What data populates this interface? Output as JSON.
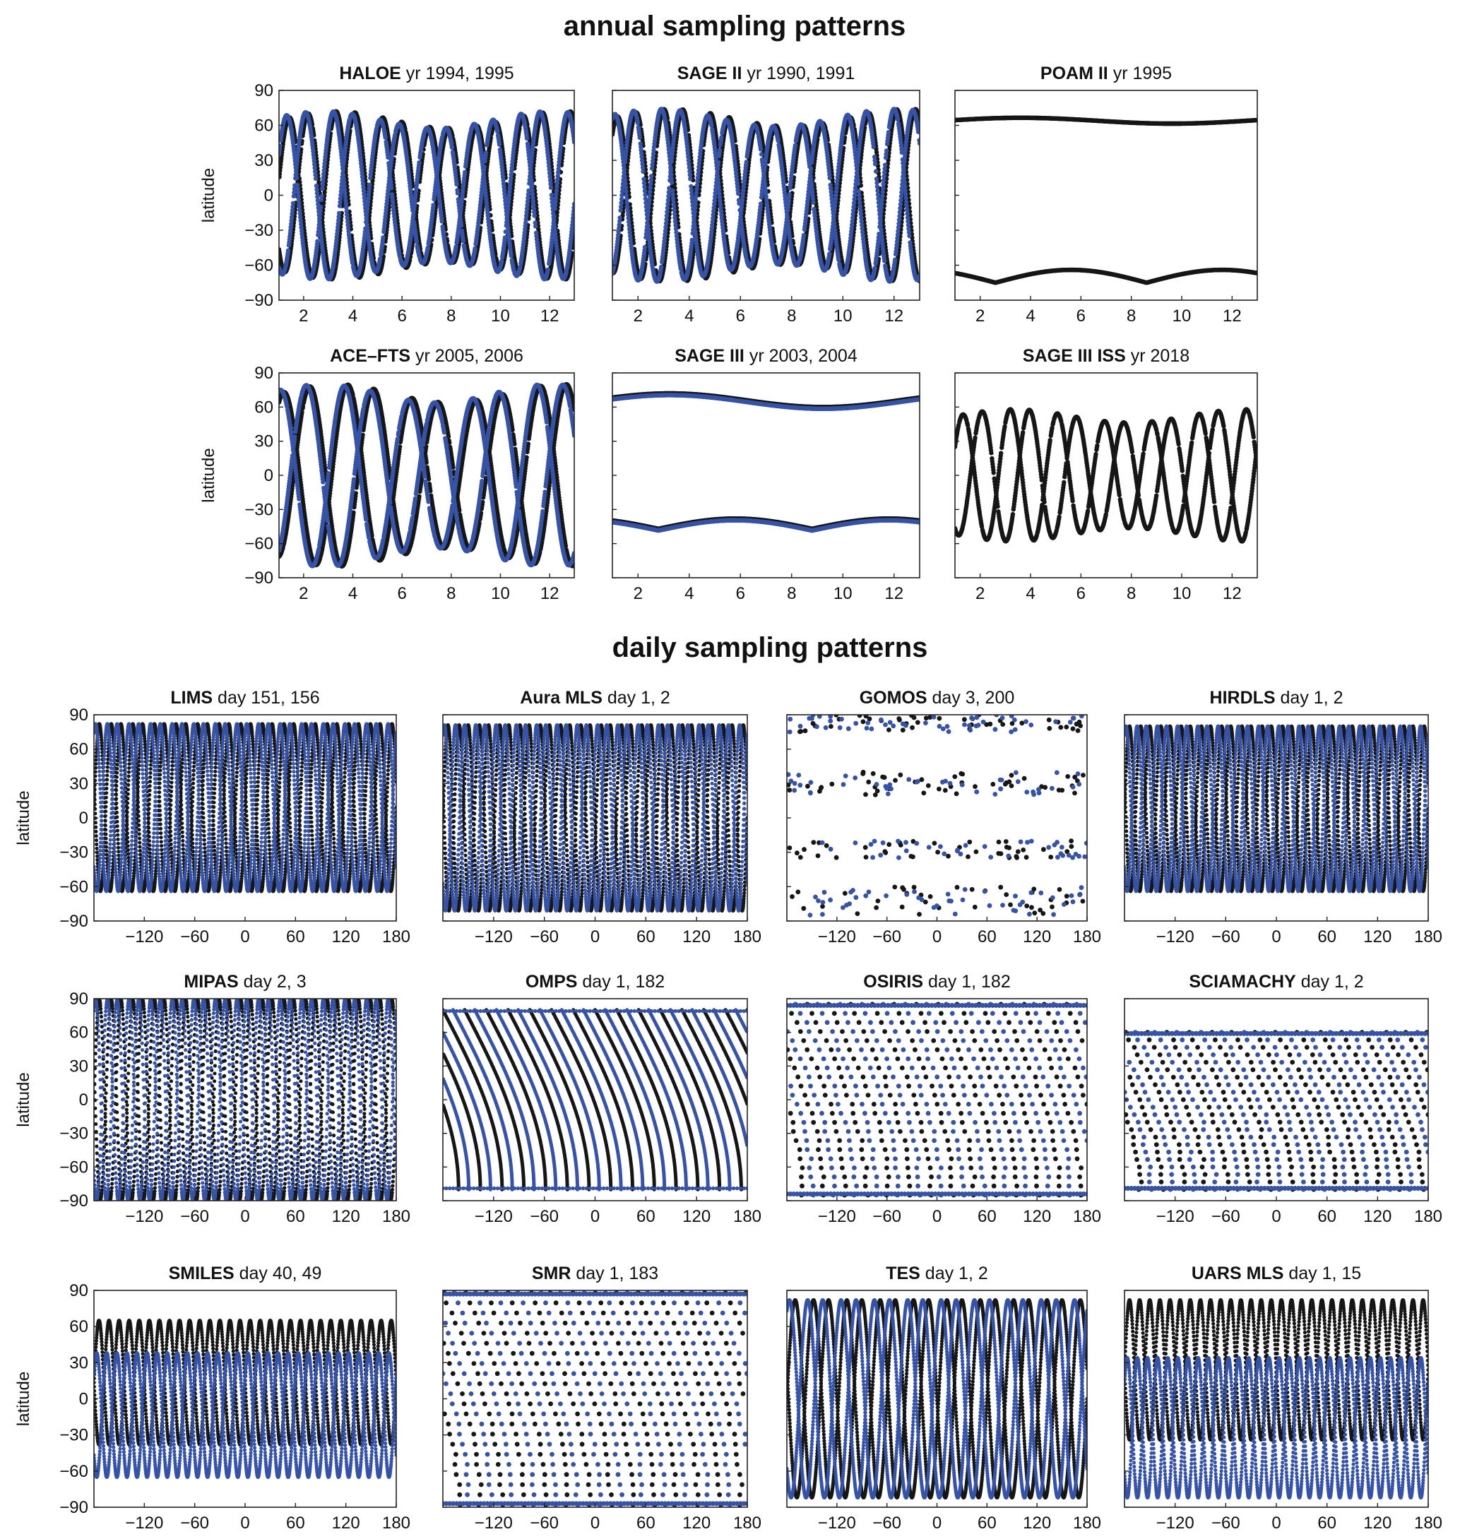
{
  "page": {
    "annual_title": "annual sampling patterns",
    "daily_title": "daily sampling patterns"
  },
  "colors": {
    "series_a": "#161616",
    "series_b": "#3653a6"
  },
  "chart_data": [
    {
      "id": "haloe",
      "group": "annual",
      "type": "scatter",
      "instrument": "HALOE",
      "rest": " yr 1994, 1995",
      "pattern": "occ",
      "params": {
        "amp": 72,
        "cycles": 6.3,
        "ph": 0.2
      },
      "xlim": [
        1,
        13
      ],
      "ylim": [
        -90,
        90
      ],
      "xticks": [
        2,
        4,
        6,
        8,
        10,
        12
      ],
      "yticks": [
        90,
        60,
        30,
        0,
        -30,
        -60,
        -90
      ],
      "ylabel": "latitude",
      "series": [
        {
          "name": "1994"
        },
        {
          "name": "1995"
        }
      ]
    },
    {
      "id": "sage2",
      "group": "annual",
      "type": "scatter",
      "instrument": "SAGE II",
      "rest": " yr 1990, 1991",
      "pattern": "occ",
      "params": {
        "amp": 74,
        "cycles": 6.6,
        "ph": 0.9
      },
      "xlim": [
        1,
        13
      ],
      "ylim": [
        -90,
        90
      ],
      "xticks": [
        2,
        4,
        6,
        8,
        10,
        12
      ],
      "yticks": [
        90,
        60,
        30,
        0,
        -30,
        -60,
        -90
      ],
      "ylabel": "",
      "series": [
        {
          "name": "1990"
        },
        {
          "name": "1991"
        }
      ]
    },
    {
      "id": "poam2",
      "group": "annual",
      "type": "scatter",
      "instrument": "POAM II",
      "rest": " yr 1995",
      "pattern": "polar",
      "params": {
        "n": [
          64,
          5,
          0.2
        ],
        "s": [
          -75,
          11,
          2.3
        ]
      },
      "xlim": [
        1,
        13
      ],
      "ylim": [
        -90,
        90
      ],
      "xticks": [
        2,
        4,
        6,
        8,
        10,
        12
      ],
      "yticks": [
        90,
        60,
        30,
        0,
        -30,
        -60,
        -90
      ],
      "ylabel": "",
      "series": [
        {
          "name": "1995"
        }
      ]
    },
    {
      "id": "acefts",
      "group": "annual",
      "type": "scatter",
      "instrument": "ACE–FTS",
      "rest": " yr 2005, 2006",
      "pattern": "occ",
      "params": {
        "amp": 80,
        "cycles": 4.6,
        "ph": 1.1
      },
      "xlim": [
        1,
        13
      ],
      "ylim": [
        -90,
        90
      ],
      "xticks": [
        2,
        4,
        6,
        8,
        10,
        12
      ],
      "yticks": [
        90,
        60,
        30,
        0,
        -30,
        -60,
        -90
      ],
      "ylabel": "latitude",
      "series": [
        {
          "name": "2005"
        },
        {
          "name": "2006"
        }
      ]
    },
    {
      "id": "sage3",
      "group": "annual",
      "type": "scatter",
      "instrument": "SAGE III",
      "rest": " yr 2003, 2004",
      "pattern": "polar",
      "params": {
        "n": [
          66,
          12,
          0.4
        ],
        "s": [
          -47,
          9,
          2.2
        ]
      },
      "xlim": [
        1,
        13
      ],
      "ylim": [
        -90,
        90
      ],
      "xticks": [
        2,
        4,
        6,
        8,
        10,
        12
      ],
      "yticks": [
        90,
        60,
        30,
        0,
        -30,
        -60,
        -90
      ],
      "ylabel": "",
      "series": [
        {
          "name": "2003"
        },
        {
          "name": "2004"
        }
      ]
    },
    {
      "id": "sage3iss",
      "group": "annual",
      "type": "scatter",
      "instrument": "SAGE III ISS",
      "rest": " yr 2018",
      "pattern": "occ",
      "params": {
        "amp": 58,
        "cycles": 6.4,
        "ph": 0.5
      },
      "xlim": [
        1,
        13
      ],
      "ylim": [
        -90,
        90
      ],
      "xticks": [
        2,
        4,
        6,
        8,
        10,
        12
      ],
      "yticks": [
        90,
        60,
        30,
        0,
        -30,
        -60,
        -90
      ],
      "ylabel": "",
      "series": [
        {
          "name": "2018"
        }
      ]
    },
    {
      "id": "lims",
      "group": "daily",
      "type": "scatter",
      "instrument": "LIMS",
      "rest": " day 151, 156",
      "pattern": "orbit",
      "params": {
        "top": 82,
        "bot": -64,
        "orbits": 14,
        "style": "line"
      },
      "xlim": [
        -180,
        180
      ],
      "ylim": [
        -90,
        90
      ],
      "xticks": [
        -120,
        -60,
        0,
        60,
        120,
        180
      ],
      "yticks": [
        90,
        60,
        30,
        0,
        -30,
        -60,
        -90
      ],
      "ylabel": "latitude",
      "series": [
        {
          "name": "day 151"
        },
        {
          "name": "day 156"
        }
      ]
    },
    {
      "id": "auramls",
      "group": "daily",
      "type": "scatter",
      "instrument": "Aura MLS",
      "rest": " day 1, 2",
      "pattern": "orbit",
      "params": {
        "top": 81,
        "bot": -81,
        "orbits": 15,
        "style": "thick"
      },
      "xlim": [
        -180,
        180
      ],
      "ylim": [
        -90,
        90
      ],
      "xticks": [
        -120,
        -60,
        0,
        60,
        120,
        180
      ],
      "yticks": [
        90,
        60,
        30,
        0,
        -30,
        -60,
        -90
      ],
      "ylabel": "",
      "series": [
        {
          "name": "day 1"
        },
        {
          "name": "day 2"
        }
      ]
    },
    {
      "id": "gomos",
      "group": "daily",
      "type": "scatter",
      "instrument": "GOMOS",
      "rest": " day 3, 200",
      "pattern": "sparse",
      "params": {
        "bands": [
          [
            75,
            90
          ],
          [
            20,
            40
          ],
          [
            -35,
            -20
          ],
          [
            -85,
            -60
          ]
        ],
        "n": 180
      },
      "xlim": [
        -180,
        180
      ],
      "ylim": [
        -90,
        90
      ],
      "xticks": [
        -120,
        -60,
        0,
        60,
        120,
        180
      ],
      "yticks": [
        90,
        60,
        30,
        0,
        -30,
        -60,
        -90
      ],
      "ylabel": "",
      "series": [
        {
          "name": "day 3"
        },
        {
          "name": "day 200"
        }
      ]
    },
    {
      "id": "hirdls",
      "group": "daily",
      "type": "scatter",
      "instrument": "HIRDLS",
      "rest": " day 1, 2",
      "pattern": "orbit",
      "params": {
        "top": 80,
        "bot": -64,
        "orbits": 15,
        "style": "thick"
      },
      "xlim": [
        -180,
        180
      ],
      "ylim": [
        -90,
        90
      ],
      "xticks": [
        -120,
        -60,
        0,
        60,
        120,
        180
      ],
      "yticks": [
        90,
        60,
        30,
        0,
        -30,
        -60,
        -90
      ],
      "ylabel": "",
      "series": [
        {
          "name": "day 1"
        },
        {
          "name": "day 2"
        }
      ]
    },
    {
      "id": "mipas",
      "group": "daily",
      "type": "scatter",
      "instrument": "MIPAS",
      "rest": " day 2, 3",
      "pattern": "orbit",
      "params": {
        "top": 89,
        "bot": -89,
        "orbits": 14,
        "style": "dots"
      },
      "xlim": [
        -180,
        180
      ],
      "ylim": [
        -90,
        90
      ],
      "xticks": [
        -120,
        -60,
        0,
        60,
        120,
        180
      ],
      "yticks": [
        90,
        60,
        30,
        0,
        -30,
        -60,
        -90
      ],
      "ylabel": "latitude",
      "series": [
        {
          "name": "day 2"
        },
        {
          "name": "day 3"
        }
      ]
    },
    {
      "id": "omps",
      "group": "daily",
      "type": "scatter",
      "instrument": "OMPS",
      "rest": " day 1, 182",
      "pattern": "slant",
      "params": {
        "top": 80,
        "bot": -80,
        "n": 14
      },
      "xlim": [
        -180,
        180
      ],
      "ylim": [
        -90,
        90
      ],
      "xticks": [
        -120,
        -60,
        0,
        60,
        120,
        180
      ],
      "yticks": [
        90,
        60,
        30,
        0,
        -30,
        -60,
        -90
      ],
      "ylabel": "",
      "series": [
        {
          "name": "day 1"
        },
        {
          "name": "day 182"
        }
      ]
    },
    {
      "id": "osiris",
      "group": "daily",
      "type": "scatter",
      "instrument": "OSIRIS",
      "rest": " day 1, 182",
      "pattern": "slantdots",
      "params": {
        "top": 85,
        "bot": -85,
        "n": 14
      },
      "xlim": [
        -180,
        180
      ],
      "ylim": [
        -90,
        90
      ],
      "xticks": [
        -120,
        -60,
        0,
        60,
        120,
        180
      ],
      "yticks": [
        90,
        60,
        30,
        0,
        -30,
        -60,
        -90
      ],
      "ylabel": "",
      "series": [
        {
          "name": "day 1"
        },
        {
          "name": "day 182"
        }
      ]
    },
    {
      "id": "sciamachy",
      "group": "daily",
      "type": "scatter",
      "instrument": "SCIAMACHY",
      "rest": " day 1, 2",
      "pattern": "slantdots",
      "params": {
        "top": 60,
        "bot": -80,
        "n": 14
      },
      "xlim": [
        -180,
        180
      ],
      "ylim": [
        -90,
        90
      ],
      "xticks": [
        -120,
        -60,
        0,
        60,
        120,
        180
      ],
      "yticks": [
        90,
        60,
        30,
        0,
        -30,
        -60,
        -90
      ],
      "ylabel": "",
      "series": [
        {
          "name": "day 1"
        },
        {
          "name": "day 2"
        }
      ]
    },
    {
      "id": "smiles",
      "group": "daily",
      "type": "scatter",
      "instrument": "SMILES",
      "rest": " day 40, 49",
      "pattern": "orbit2",
      "params": {
        "a": [
          65,
          -38
        ],
        "b": [
          38,
          -65
        ],
        "orbits": 15
      },
      "xlim": [
        -180,
        180
      ],
      "ylim": [
        -90,
        90
      ],
      "xticks": [
        -120,
        -60,
        0,
        60,
        120,
        180
      ],
      "yticks": [
        90,
        60,
        30,
        0,
        -30,
        -60,
        -90
      ],
      "ylabel": "latitude",
      "series": [
        {
          "name": "day 40"
        },
        {
          "name": "day 49"
        }
      ]
    },
    {
      "id": "smr",
      "group": "daily",
      "type": "scatter",
      "instrument": "SMR",
      "rest": " day 1, 183",
      "pattern": "slantdots",
      "params": {
        "top": 88,
        "bot": -88,
        "n": 14
      },
      "xlim": [
        -180,
        180
      ],
      "ylim": [
        -90,
        90
      ],
      "xticks": [
        -120,
        -60,
        0,
        60,
        120,
        180
      ],
      "yticks": [
        90,
        60,
        30,
        0,
        -30,
        -60,
        -90
      ],
      "ylabel": "",
      "series": [
        {
          "name": "day 1"
        },
        {
          "name": "day 183"
        }
      ]
    },
    {
      "id": "tes",
      "group": "daily",
      "type": "scatter",
      "instrument": "TES",
      "rest": " day 1, 2",
      "pattern": "orbit",
      "params": {
        "top": 82,
        "bot": -82,
        "orbits": 9,
        "style": "thick"
      },
      "xlim": [
        -180,
        180
      ],
      "ylim": [
        -90,
        90
      ],
      "xticks": [
        -120,
        -60,
        0,
        60,
        120,
        180
      ],
      "yticks": [
        90,
        60,
        30,
        0,
        -30,
        -60,
        -90
      ],
      "ylabel": "",
      "series": [
        {
          "name": "day 1"
        },
        {
          "name": "day 2"
        }
      ]
    },
    {
      "id": "uarsmls",
      "group": "daily",
      "type": "scatter",
      "instrument": "UARS MLS",
      "rest": " day 1, 15",
      "pattern": "orbit2",
      "params": {
        "a": [
          82,
          -34
        ],
        "b": [
          34,
          -82
        ],
        "orbits": 15
      },
      "xlim": [
        -180,
        180
      ],
      "ylim": [
        -90,
        90
      ],
      "xticks": [
        -120,
        -60,
        0,
        60,
        120,
        180
      ],
      "yticks": [
        90,
        60,
        30,
        0,
        -30,
        -60,
        -90
      ],
      "ylabel": "",
      "series": [
        {
          "name": "day 1"
        },
        {
          "name": "day 15"
        }
      ]
    }
  ]
}
